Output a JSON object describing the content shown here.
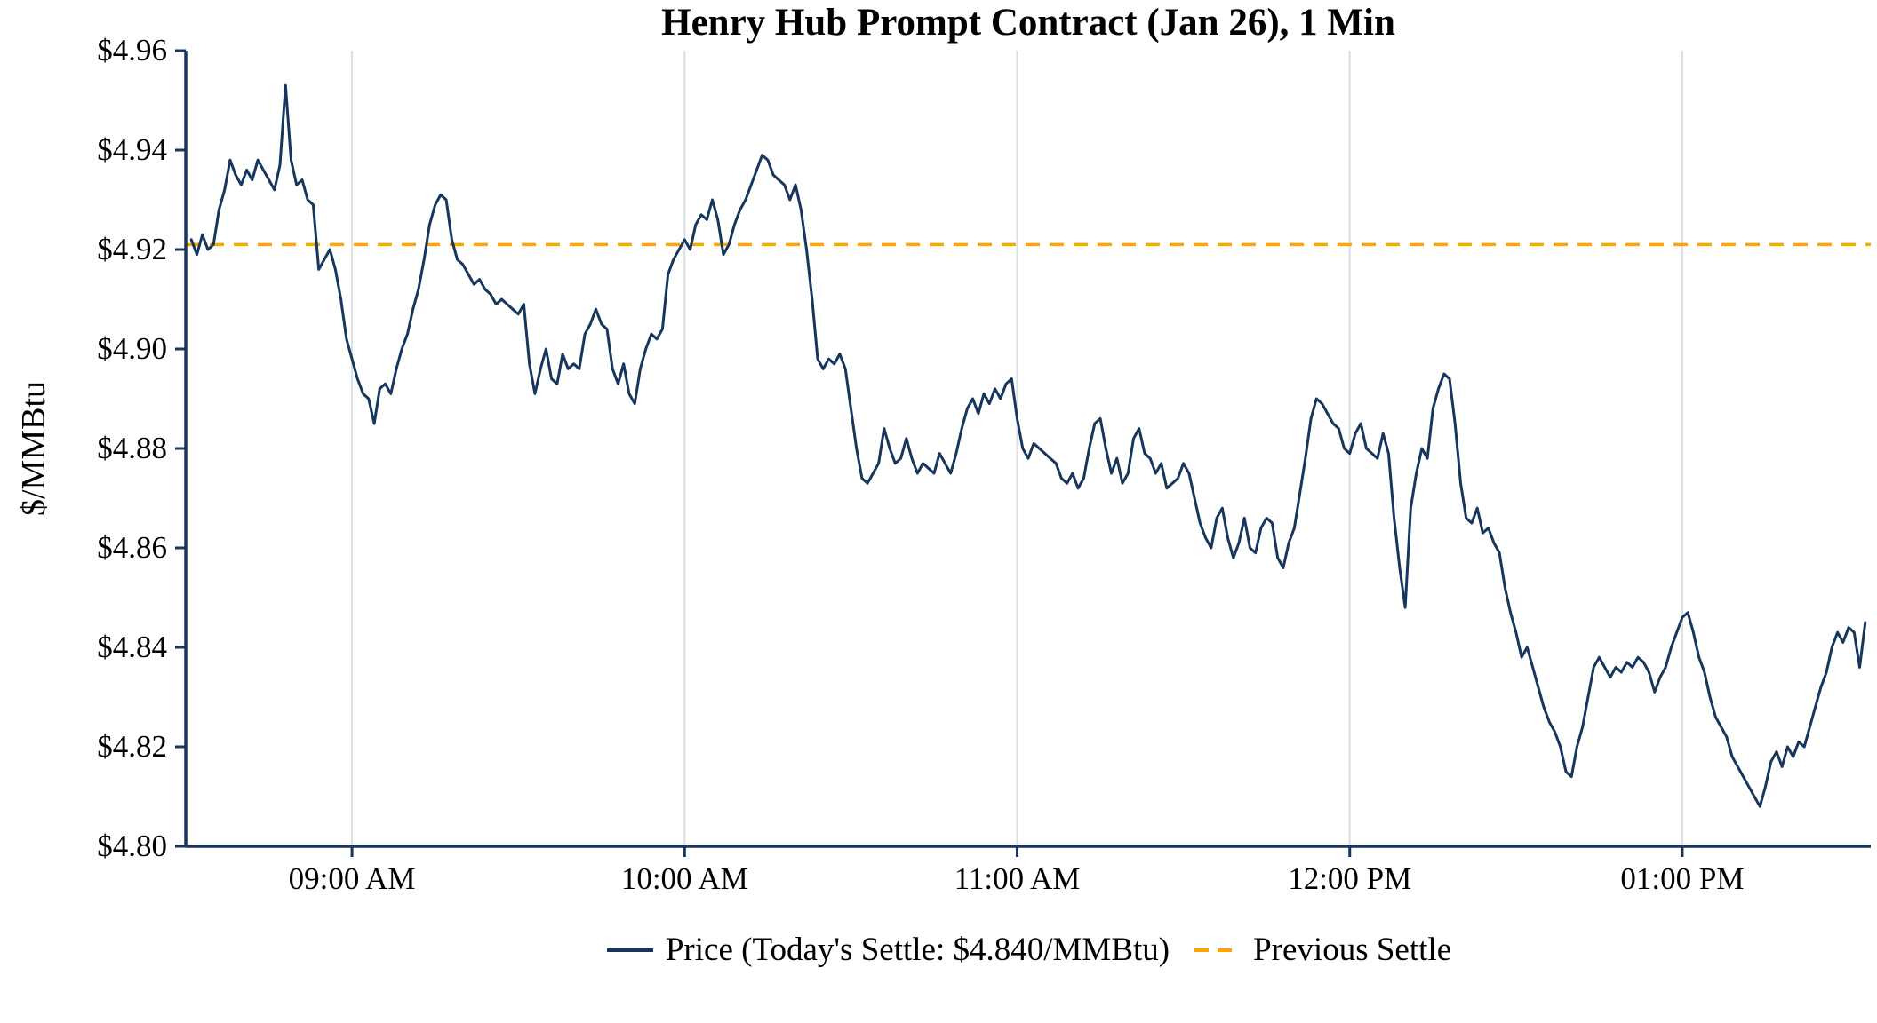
{
  "colors": {
    "price_line": "#17365d",
    "previous_settle": "#FFA500",
    "axis": "#17365d",
    "grid": "#d9dfe8",
    "background": "#ffffff",
    "text": "#000000"
  },
  "chart_data": {
    "type": "line",
    "title": "Henry Hub Prompt Contract (Jan 26), 1 Min",
    "xlabel": "",
    "ylabel": "$/MMBtu",
    "grid": "vertical-hour-lines",
    "legend_position": "bottom-center",
    "legend": {
      "price_label": "Price (Today's Settle: $4.840/MMBtu)",
      "settle_label": "Previous Settle"
    },
    "previous_settle": 4.921,
    "todays_settle": 4.84,
    "x_axis": {
      "unit": "minutes-since-midnight",
      "range_minutes": [
        510,
        814
      ],
      "tick_times_minutes": [
        540,
        600,
        660,
        720,
        780
      ],
      "tick_labels": [
        "09:00 AM",
        "10:00 AM",
        "11:00 AM",
        "12:00 PM",
        "01:00 PM"
      ]
    },
    "y_axis": {
      "range": [
        4.8,
        4.96
      ],
      "ticks": [
        4.8,
        4.82,
        4.84,
        4.86,
        4.88,
        4.9,
        4.92,
        4.94,
        4.96
      ],
      "tick_labels": [
        "$4.80",
        "$4.82",
        "$4.84",
        "$4.86",
        "$4.88",
        "$4.90",
        "$4.92",
        "$4.94",
        "$4.96"
      ]
    },
    "series": [
      {
        "name": "Price",
        "start_minutes": 511,
        "step_minutes": 1,
        "values": [
          4.922,
          4.919,
          4.923,
          4.92,
          4.921,
          4.928,
          4.932,
          4.938,
          4.935,
          4.933,
          4.936,
          4.934,
          4.938,
          4.936,
          4.934,
          4.932,
          4.937,
          4.953,
          4.938,
          4.933,
          4.934,
          4.93,
          4.929,
          4.916,
          4.918,
          4.92,
          4.916,
          4.91,
          4.902,
          4.898,
          4.894,
          4.891,
          4.89,
          4.885,
          4.892,
          4.893,
          4.891,
          4.896,
          4.9,
          4.903,
          4.908,
          4.912,
          4.918,
          4.925,
          4.929,
          4.931,
          4.93,
          4.922,
          4.918,
          4.917,
          4.915,
          4.913,
          4.914,
          4.912,
          4.911,
          4.909,
          4.91,
          4.909,
          4.908,
          4.907,
          4.909,
          4.897,
          4.891,
          4.896,
          4.9,
          4.894,
          4.893,
          4.899,
          4.896,
          4.897,
          4.896,
          4.903,
          4.905,
          4.908,
          4.905,
          4.904,
          4.896,
          4.893,
          4.897,
          4.891,
          4.889,
          4.896,
          4.9,
          4.903,
          4.902,
          4.904,
          4.915,
          4.918,
          4.92,
          4.922,
          4.92,
          4.925,
          4.927,
          4.926,
          4.93,
          4.926,
          4.919,
          4.921,
          4.925,
          4.928,
          4.93,
          4.933,
          4.936,
          4.939,
          4.938,
          4.935,
          4.934,
          4.933,
          4.93,
          4.933,
          4.928,
          4.92,
          4.91,
          4.898,
          4.896,
          4.898,
          4.897,
          4.899,
          4.896,
          4.888,
          4.88,
          4.874,
          4.873,
          4.875,
          4.877,
          4.884,
          4.88,
          4.877,
          4.878,
          4.882,
          4.878,
          4.875,
          4.877,
          4.876,
          4.875,
          4.879,
          4.877,
          4.875,
          4.879,
          4.884,
          4.888,
          4.89,
          4.887,
          4.891,
          4.889,
          4.892,
          4.89,
          4.893,
          4.894,
          4.886,
          4.88,
          4.878,
          4.881,
          4.88,
          4.879,
          4.878,
          4.877,
          4.874,
          4.873,
          4.875,
          4.872,
          4.874,
          4.88,
          4.885,
          4.886,
          4.88,
          4.875,
          4.878,
          4.873,
          4.875,
          4.882,
          4.884,
          4.879,
          4.878,
          4.875,
          4.877,
          4.872,
          4.873,
          4.874,
          4.877,
          4.875,
          4.87,
          4.865,
          4.862,
          4.86,
          4.866,
          4.868,
          4.862,
          4.858,
          4.861,
          4.866,
          4.86,
          4.859,
          4.864,
          4.866,
          4.865,
          4.858,
          4.856,
          4.861,
          4.864,
          4.871,
          4.878,
          4.886,
          4.89,
          4.889,
          4.887,
          4.885,
          4.884,
          4.88,
          4.879,
          4.883,
          4.885,
          4.88,
          4.879,
          4.878,
          4.883,
          4.879,
          4.866,
          4.856,
          4.848,
          4.868,
          4.875,
          4.88,
          4.878,
          4.888,
          4.892,
          4.895,
          4.894,
          4.885,
          4.873,
          4.866,
          4.865,
          4.868,
          4.863,
          4.864,
          4.861,
          4.859,
          4.852,
          4.847,
          4.843,
          4.838,
          4.84,
          4.836,
          4.832,
          4.828,
          4.825,
          4.823,
          4.82,
          4.815,
          4.814,
          4.82,
          4.824,
          4.83,
          4.836,
          4.838,
          4.836,
          4.834,
          4.836,
          4.835,
          4.837,
          4.836,
          4.838,
          4.837,
          4.835,
          4.831,
          4.834,
          4.836,
          4.84,
          4.843,
          4.846,
          4.847,
          4.843,
          4.838,
          4.835,
          4.83,
          4.826,
          4.824,
          4.822,
          4.818,
          4.816,
          4.814,
          4.812,
          4.81,
          4.808,
          4.812,
          4.817,
          4.819,
          4.816,
          4.82,
          4.818,
          4.821,
          4.82,
          4.824,
          4.828,
          4.832,
          4.835,
          4.84,
          4.843,
          4.841,
          4.844,
          4.843,
          4.836,
          4.845
        ]
      }
    ]
  }
}
